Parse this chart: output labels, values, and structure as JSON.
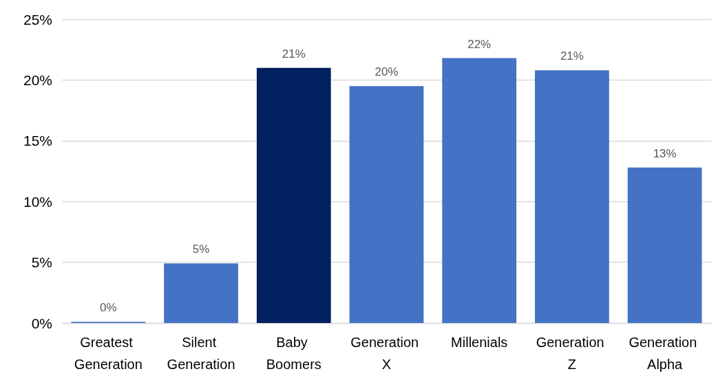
{
  "chart_data": {
    "type": "bar",
    "categories": [
      "Greatest Generation",
      "Silent Generation",
      "Baby Boomers",
      "Generation X",
      "Millenials",
      "Generation Z",
      "Generation Alpha"
    ],
    "values": [
      0.1,
      4.9,
      21.0,
      19.5,
      21.8,
      20.8,
      12.8
    ],
    "colors": [
      "#4472c4",
      "#4472c4",
      "#002060",
      "#4472c4",
      "#4472c4",
      "#4472c4",
      "#4472c4"
    ],
    "value_labels": [
      "0%",
      "5%",
      "21%",
      "20%",
      "22%",
      "21%",
      "13%"
    ],
    "ylim": [
      0,
      25
    ],
    "yticks": [
      {
        "value": 0,
        "label": "0%"
      },
      {
        "value": 5,
        "label": "5%"
      },
      {
        "value": 10,
        "label": "10%"
      },
      {
        "value": 15,
        "label": "15%"
      },
      {
        "value": 20,
        "label": "20%"
      },
      {
        "value": 25,
        "label": "25%"
      }
    ],
    "grid": "y"
  }
}
